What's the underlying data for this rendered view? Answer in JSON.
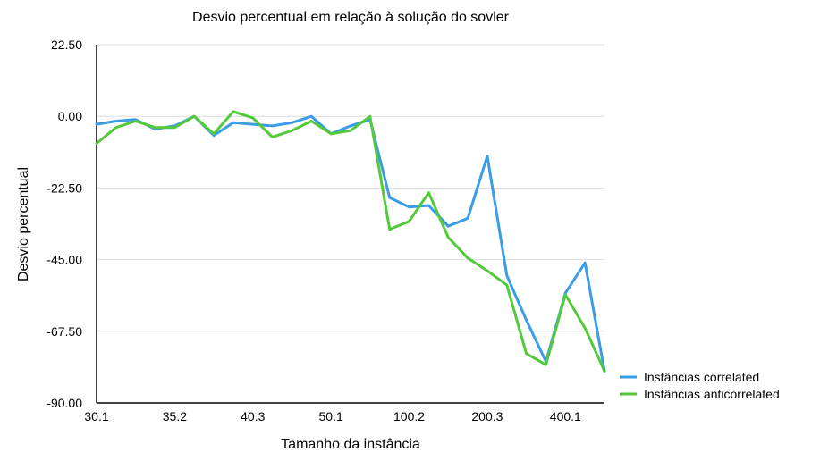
{
  "chart_data": {
    "type": "line",
    "title": "Desvio percentual em relação à solução do sovler",
    "xlabel": "Tamanho da instância",
    "ylabel": "Desvio percentual",
    "ylim": [
      -90,
      22.5
    ],
    "yticks": [
      "22.50",
      "0.00",
      "-22.50",
      "-45.00",
      "-67.50",
      "-90.00"
    ],
    "xtick_labels": [
      "30.1",
      "35.2",
      "40.3",
      "50.1",
      "100.2",
      "200.3",
      "400.1"
    ],
    "grid": "horizontal",
    "legend_position": "right-bottom",
    "series": [
      {
        "name": "Instâncias correlated",
        "color": "#3b9de6",
        "values": [
          -2.5,
          -1.5,
          -1.0,
          -4.0,
          -3.0,
          0.0,
          -6.0,
          -2.0,
          -2.5,
          -3.0,
          -2.0,
          0.0,
          -5.5,
          -3.0,
          -1.0,
          -25.5,
          -28.5,
          -28.0,
          -34.5,
          -32.0,
          -12.5,
          -50.0,
          -64.0,
          -77.0,
          -55.5,
          -46.0,
          -80.0
        ]
      },
      {
        "name": "Instâncias anticorrelated",
        "color": "#55c93c",
        "values": [
          -8.5,
          -3.5,
          -1.5,
          -3.5,
          -3.5,
          0.0,
          -5.5,
          1.5,
          -0.5,
          -6.5,
          -4.5,
          -1.5,
          -5.5,
          -4.5,
          0.0,
          -35.5,
          -33.0,
          -24.0,
          -38.0,
          -44.5,
          -48.5,
          -53.0,
          -74.5,
          -78.0,
          -56.0,
          -66.5,
          -80.0
        ]
      }
    ]
  }
}
